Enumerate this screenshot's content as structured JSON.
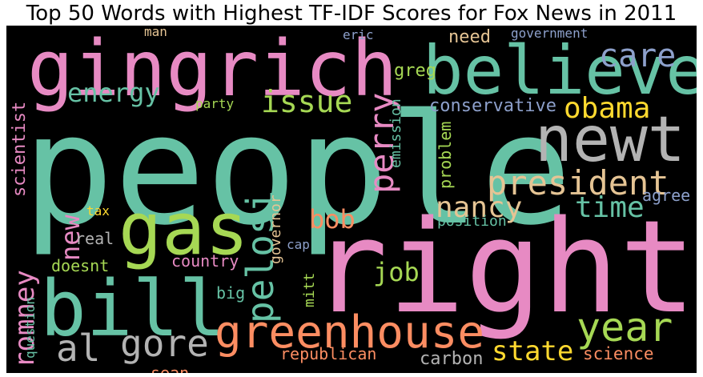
{
  "chart_data": {
    "type": "wordcloud",
    "title": "Top 50 Words with Highest TF-IDF Scores for Fox News in 2011",
    "background": "#000000",
    "palette": [
      "#66c2a5",
      "#fc8d62",
      "#8da0cb",
      "#e78ac3",
      "#a6d854",
      "#ffd92f",
      "#e5c494",
      "#b3b3b3"
    ],
    "words": [
      {
        "text": "people",
        "color": "#66c2a5",
        "rotate": false
      },
      {
        "text": "right",
        "color": "#e78ac3",
        "rotate": false
      },
      {
        "text": "gingrich",
        "color": "#e78ac3",
        "rotate": false
      },
      {
        "text": "believe",
        "color": "#66c2a5",
        "rotate": false
      },
      {
        "text": "newt",
        "color": "#b3b3b3",
        "rotate": false
      },
      {
        "text": "bill",
        "color": "#66c2a5",
        "rotate": false
      },
      {
        "text": "gas",
        "color": "#a6d854",
        "rotate": false
      },
      {
        "text": "greenhouse",
        "color": "#fc8d62",
        "rotate": false
      },
      {
        "text": "president",
        "color": "#e5c494",
        "rotate": false
      },
      {
        "text": "year",
        "color": "#a6d854",
        "rotate": false
      },
      {
        "text": "gore",
        "color": "#b3b3b3",
        "rotate": false
      },
      {
        "text": "al",
        "color": "#b3b3b3",
        "rotate": false
      },
      {
        "text": "pelosi",
        "color": "#66c2a5",
        "rotate": true
      },
      {
        "text": "perry",
        "color": "#e78ac3",
        "rotate": true
      },
      {
        "text": "care",
        "color": "#8da0cb",
        "rotate": false
      },
      {
        "text": "obama",
        "color": "#ffd92f",
        "rotate": false
      },
      {
        "text": "issue",
        "color": "#a6d854",
        "rotate": false
      },
      {
        "text": "energy",
        "color": "#66c2a5",
        "rotate": false
      },
      {
        "text": "time",
        "color": "#66c2a5",
        "rotate": false
      },
      {
        "text": "nancy",
        "color": "#e5c494",
        "rotate": false
      },
      {
        "text": "bob",
        "color": "#fc8d62",
        "rotate": false
      },
      {
        "text": "state",
        "color": "#ffd92f",
        "rotate": false
      },
      {
        "text": "romney",
        "color": "#e78ac3",
        "rotate": true
      },
      {
        "text": "new",
        "color": "#e78ac3",
        "rotate": true
      },
      {
        "text": "job",
        "color": "#a6d854",
        "rotate": false
      },
      {
        "text": "need",
        "color": "#e5c494",
        "rotate": false
      },
      {
        "text": "conservative",
        "color": "#8da0cb",
        "rotate": false
      },
      {
        "text": "greg",
        "color": "#a6d854",
        "rotate": false
      },
      {
        "text": "scientist",
        "color": "#e78ac3",
        "rotate": true
      },
      {
        "text": "carbon",
        "color": "#b3b3b3",
        "rotate": false
      },
      {
        "text": "science",
        "color": "#fc8d62",
        "rotate": false
      },
      {
        "text": "republican",
        "color": "#fc8d62",
        "rotate": false
      },
      {
        "text": "sean",
        "color": "#fc8d62",
        "rotate": false
      },
      {
        "text": "country",
        "color": "#e78ac3",
        "rotate": false
      },
      {
        "text": "doesnt",
        "color": "#a6d854",
        "rotate": false
      },
      {
        "text": "real",
        "color": "#b3b3b3",
        "rotate": false
      },
      {
        "text": "big",
        "color": "#66c2a5",
        "rotate": false
      },
      {
        "text": "problem",
        "color": "#a6d854",
        "rotate": true
      },
      {
        "text": "agree",
        "color": "#8da0cb",
        "rotate": false
      },
      {
        "text": "position",
        "color": "#66c2a5",
        "rotate": false
      },
      {
        "text": "governor",
        "color": "#e5c494",
        "rotate": true
      },
      {
        "text": "mitt",
        "color": "#a6d854",
        "rotate": true
      },
      {
        "text": "emission",
        "color": "#66c2a5",
        "rotate": true
      },
      {
        "text": "party",
        "color": "#a6d854",
        "rotate": false
      },
      {
        "text": "eric",
        "color": "#8da0cb",
        "rotate": false
      },
      {
        "text": "government",
        "color": "#8da0cb",
        "rotate": false
      },
      {
        "text": "man",
        "color": "#e5c494",
        "rotate": false
      },
      {
        "text": "tax",
        "color": "#ffd92f",
        "rotate": false
      },
      {
        "text": "cap",
        "color": "#8da0cb",
        "rotate": false
      },
      {
        "text": "question",
        "color": "#66c2a5",
        "rotate": true
      }
    ]
  }
}
